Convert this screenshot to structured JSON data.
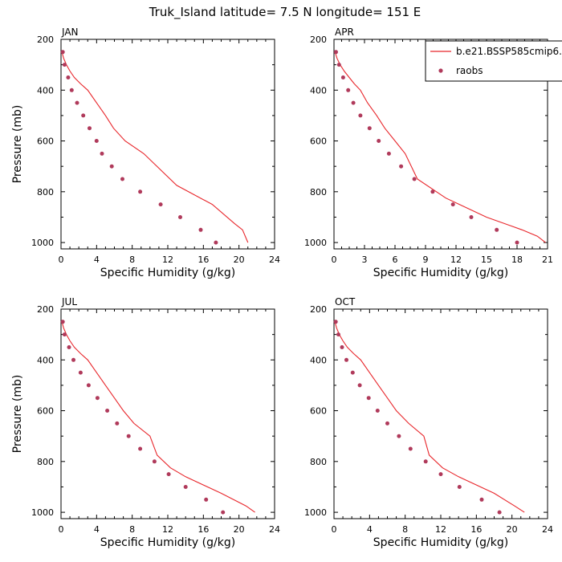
{
  "title": "Truk_Island  latitude= 7.5 N longitude= 151 E",
  "legend": {
    "placement": "top-right",
    "model_label": "b.e21.BSSP585cmip6.",
    "obs_label": "raobs"
  },
  "colors": {
    "model": "#e8262b",
    "obs": "#b03a5b"
  },
  "chart_data": [
    {
      "type": "line",
      "panel": "JAN",
      "xlabel": "Specific Humidity (g/kg)",
      "ylabel": "Pressure (mb)",
      "xlim": [
        0,
        24
      ],
      "ylim": [
        200,
        1025
      ],
      "y_inverted": true,
      "xticks": [
        0,
        4,
        8,
        12,
        16,
        20,
        24
      ],
      "yticks": [
        200,
        400,
        600,
        800,
        1000
      ],
      "series": [
        {
          "name": "b.e21.BSSP585cmip6.",
          "kind": "line",
          "x": [
            0.1,
            0.3,
            0.6,
            1.0,
            1.5,
            2.2,
            3.0,
            4.0,
            5.0,
            5.9,
            7.2,
            9.3,
            13.0,
            17.0,
            19.5,
            20.4,
            21.0
          ],
          "y": [
            250,
            275,
            300,
            325,
            350,
            375,
            400,
            450,
            500,
            550,
            600,
            650,
            775,
            850,
            925,
            950,
            1000
          ]
        },
        {
          "name": "raobs",
          "kind": "scatter",
          "x": [
            0.2,
            0.4,
            0.8,
            1.2,
            1.8,
            2.5,
            3.2,
            4.0,
            4.6,
            5.7,
            6.9,
            8.9,
            11.2,
            13.4,
            15.7,
            17.4
          ],
          "y": [
            250,
            300,
            350,
            400,
            450,
            500,
            550,
            600,
            650,
            700,
            750,
            800,
            850,
            900,
            950,
            1000
          ]
        }
      ]
    },
    {
      "type": "line",
      "panel": "APR",
      "xlabel": "Specific Humidity (g/kg)",
      "ylabel": "",
      "xlim": [
        0,
        21
      ],
      "ylim": [
        200,
        1025
      ],
      "y_inverted": true,
      "xticks": [
        0,
        3,
        6,
        9,
        12,
        15,
        18,
        21
      ],
      "yticks": [
        200,
        400,
        600,
        800,
        1000
      ],
      "series": [
        {
          "name": "b.e21.BSSP585cmip6.",
          "kind": "line",
          "x": [
            0.1,
            0.3,
            0.6,
            1.0,
            1.5,
            2.0,
            2.6,
            3.3,
            4.2,
            5.0,
            6.0,
            7.0,
            8.2,
            11.0,
            15.0,
            18.5,
            20.0,
            20.8
          ],
          "y": [
            250,
            275,
            300,
            325,
            350,
            375,
            400,
            450,
            500,
            550,
            600,
            650,
            750,
            825,
            900,
            950,
            975,
            1000
          ]
        },
        {
          "name": "raobs",
          "kind": "scatter",
          "x": [
            0.2,
            0.5,
            0.9,
            1.4,
            1.9,
            2.6,
            3.5,
            4.4,
            5.4,
            6.6,
            7.9,
            9.7,
            11.7,
            13.5,
            16.0,
            18.0
          ],
          "y": [
            250,
            300,
            350,
            400,
            450,
            500,
            550,
            600,
            650,
            700,
            750,
            800,
            850,
            900,
            950,
            1000
          ]
        }
      ]
    },
    {
      "type": "line",
      "panel": "JUL",
      "xlabel": "Specific Humidity (g/kg)",
      "ylabel": "Pressure (mb)",
      "xlim": [
        0,
        24
      ],
      "ylim": [
        200,
        1025
      ],
      "y_inverted": true,
      "xticks": [
        0,
        4,
        8,
        12,
        16,
        20,
        24
      ],
      "yticks": [
        200,
        400,
        600,
        800,
        1000
      ],
      "series": [
        {
          "name": "b.e21.BSSP585cmip6.",
          "kind": "line",
          "x": [
            0.1,
            0.3,
            0.6,
            1.0,
            1.5,
            2.2,
            3.0,
            4.0,
            5.0,
            6.0,
            7.0,
            8.2,
            10.0,
            10.8,
            12.3,
            14.0,
            18.0,
            20.8,
            21.8
          ],
          "y": [
            250,
            275,
            300,
            325,
            350,
            375,
            400,
            450,
            500,
            550,
            600,
            650,
            700,
            775,
            825,
            860,
            925,
            975,
            1000
          ]
        },
        {
          "name": "raobs",
          "kind": "scatter",
          "x": [
            0.2,
            0.4,
            0.9,
            1.4,
            2.2,
            3.1,
            4.1,
            5.2,
            6.3,
            7.6,
            8.9,
            10.5,
            12.1,
            14.0,
            16.3,
            18.2
          ],
          "y": [
            250,
            300,
            350,
            400,
            450,
            500,
            550,
            600,
            650,
            700,
            750,
            800,
            850,
            900,
            950,
            1000
          ]
        }
      ]
    },
    {
      "type": "line",
      "panel": "OCT",
      "xlabel": "Specific Humidity (g/kg)",
      "ylabel": "",
      "xlim": [
        0,
        24
      ],
      "ylim": [
        200,
        1025
      ],
      "y_inverted": true,
      "xticks": [
        0,
        4,
        8,
        12,
        16,
        20,
        24
      ],
      "yticks": [
        200,
        400,
        600,
        800,
        1000
      ],
      "series": [
        {
          "name": "b.e21.BSSP585cmip6.",
          "kind": "line",
          "x": [
            0.1,
            0.3,
            0.6,
            1.0,
            1.5,
            2.2,
            3.0,
            4.0,
            5.0,
            6.0,
            7.0,
            8.4,
            10.1,
            10.7,
            12.2,
            14.0,
            18.0,
            20.3,
            21.4
          ],
          "y": [
            250,
            275,
            300,
            325,
            350,
            375,
            400,
            450,
            500,
            550,
            600,
            650,
            700,
            775,
            825,
            860,
            925,
            975,
            1000
          ]
        },
        {
          "name": "raobs",
          "kind": "scatter",
          "x": [
            0.2,
            0.5,
            0.9,
            1.4,
            2.1,
            2.9,
            3.9,
            4.9,
            6.0,
            7.3,
            8.6,
            10.3,
            12.0,
            14.1,
            16.6,
            18.6
          ],
          "y": [
            250,
            300,
            350,
            400,
            450,
            500,
            550,
            600,
            650,
            700,
            750,
            800,
            850,
            900,
            950,
            1000
          ]
        }
      ]
    }
  ]
}
